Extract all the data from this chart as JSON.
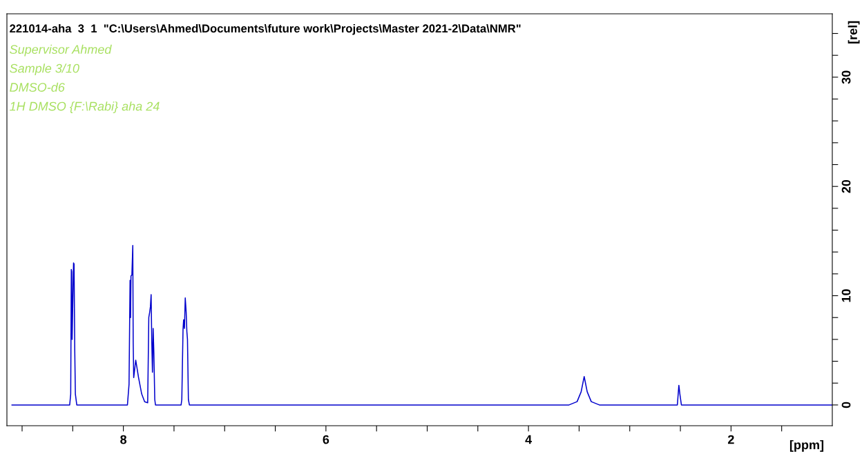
{
  "chart_data": {
    "type": "line",
    "title": "221014-aha  3  1  \"C:\\Users\\Ahmed\\Documents\\future work\\Projects\\Master 2021-2\\Data\\NMR\"",
    "annotations": [
      "Supervisor Ahmed",
      "Sample 3/10",
      "DMSO-d6",
      "1H DMSO {F:\\Rabi} aha 24"
    ],
    "xlabel": "[ppm]",
    "ylabel": "[rel]",
    "series": [
      {
        "color": "#0000cc",
        "x": [
          9.1,
          8.53,
          8.52,
          8.514,
          8.51,
          8.506,
          8.492,
          8.487,
          8.48,
          8.474,
          8.46,
          7.96,
          7.944,
          7.934,
          7.929,
          7.925,
          7.916,
          7.907,
          7.903,
          7.898,
          7.878,
          7.85,
          7.819,
          7.79,
          7.76,
          7.749,
          7.74,
          7.733,
          7.726,
          7.72,
          7.713,
          7.706,
          7.699,
          7.69,
          7.683,
          7.43,
          7.423,
          7.411,
          7.405,
          7.397,
          7.389,
          7.38,
          7.373,
          7.367,
          7.358,
          7.348,
          3.6,
          3.52,
          3.48,
          3.45,
          3.42,
          3.38,
          3.3,
          2.53,
          2.515,
          2.505,
          2.49,
          1.0
        ],
        "values": [
          0,
          0,
          1.0,
          12.4,
          12.2,
          6.0,
          13.0,
          12.9,
          5.0,
          1.0,
          0,
          0,
          1.9,
          11.4,
          8.0,
          11.8,
          11.9,
          14.6,
          5.7,
          2.5,
          4.1,
          2.5,
          1.0,
          0.3,
          0.2,
          8.0,
          8.5,
          9.0,
          10.1,
          6.0,
          3.0,
          7.0,
          4.8,
          0.5,
          0,
          0,
          0.5,
          6.9,
          7.8,
          7.0,
          9.8,
          8.5,
          6.7,
          6.0,
          0.5,
          0,
          0,
          0.3,
          1.2,
          2.6,
          1.2,
          0.3,
          0,
          0,
          1.8,
          1.0,
          0,
          0
        ]
      }
    ],
    "xlim": [
      9.15,
      1.0
    ],
    "xticks": [
      {
        "value": 9.0,
        "label": null
      },
      {
        "value": 8.5,
        "label": null
      },
      8,
      {
        "value": 7.5,
        "label": null
      },
      {
        "value": 7.0,
        "label": null
      },
      {
        "value": 6.5,
        "label": null
      },
      6,
      {
        "value": 5.5,
        "label": null
      },
      {
        "value": 5.0,
        "label": null
      },
      {
        "value": 4.5,
        "label": null
      },
      4,
      {
        "value": 3.5,
        "label": null
      },
      {
        "value": 3.0,
        "label": null
      },
      {
        "value": 2.5,
        "label": null
      },
      2,
      {
        "value": 1.5,
        "label": null
      }
    ],
    "ylim": [
      -1.9,
      35.8
    ],
    "yticks": [
      0,
      {
        "value": 2,
        "label": null
      },
      {
        "value": 4,
        "label": null
      },
      {
        "value": 6,
        "label": null
      },
      {
        "value": 8,
        "label": null
      },
      10,
      {
        "value": 12,
        "label": null
      },
      {
        "value": 14,
        "label": null
      },
      {
        "value": 16,
        "label": null
      },
      {
        "value": 18,
        "label": null
      },
      20,
      {
        "value": 22,
        "label": null
      },
      {
        "value": 24,
        "label": null
      },
      {
        "value": 26,
        "label": null
      },
      {
        "value": 28,
        "label": null
      },
      30,
      {
        "value": 32,
        "label": null
      },
      {
        "value": 34,
        "label": null
      }
    ],
    "grid": false,
    "legend": false,
    "marker": "none",
    "line_style": "solid"
  }
}
